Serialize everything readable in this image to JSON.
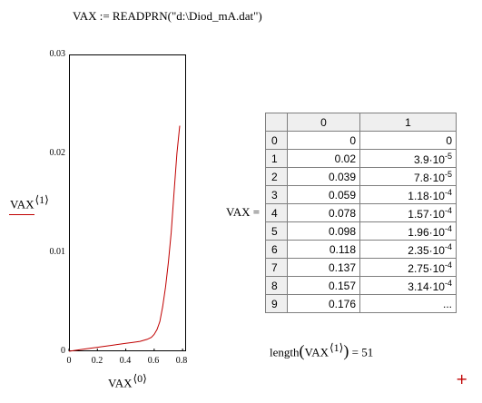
{
  "formula": "VAX := READPRN(\"d:\\Diod_mA.dat\")",
  "plot": {
    "y_ticks": [
      "0.03",
      "0.02",
      "0.01",
      "0"
    ],
    "x_ticks": [
      "0",
      "0.2",
      "0.4",
      "0.6",
      "0.8"
    ],
    "ylabel_base": "VAX",
    "ylabel_sup": "⟨1⟩",
    "xlabel_base": "VAX",
    "xlabel_sup": "⟨0⟩",
    "line_color": "#c00000"
  },
  "chart_data": {
    "type": "line",
    "x": [
      0,
      0.1,
      0.2,
      0.3,
      0.4,
      0.45,
      0.5,
      0.55,
      0.58,
      0.6,
      0.62,
      0.64,
      0.66,
      0.68,
      0.7,
      0.72,
      0.74,
      0.76,
      0.78
    ],
    "y": [
      0,
      0.0002,
      0.0004,
      0.0006,
      0.0008,
      0.0009,
      0.001,
      0.0012,
      0.0014,
      0.0017,
      0.0022,
      0.003,
      0.0045,
      0.0065,
      0.009,
      0.012,
      0.016,
      0.02,
      0.0228
    ],
    "xlim": [
      0,
      0.8
    ],
    "ylim": [
      0,
      0.03
    ],
    "xlabel": "VAX⟨0⟩",
    "ylabel": "VAX⟨1⟩"
  },
  "vax_label": "VAX =",
  "table": {
    "col_headers": [
      "0",
      "1"
    ],
    "rows": [
      {
        "idx": "0",
        "c0": "0",
        "c1_m": "0",
        "c1_e": ""
      },
      {
        "idx": "1",
        "c0": "0.02",
        "c1_m": "3.9·10",
        "c1_e": "-5"
      },
      {
        "idx": "2",
        "c0": "0.039",
        "c1_m": "7.8·10",
        "c1_e": "-5"
      },
      {
        "idx": "3",
        "c0": "0.059",
        "c1_m": "1.18·10",
        "c1_e": "-4"
      },
      {
        "idx": "4",
        "c0": "0.078",
        "c1_m": "1.57·10",
        "c1_e": "-4"
      },
      {
        "idx": "5",
        "c0": "0.098",
        "c1_m": "1.96·10",
        "c1_e": "-4"
      },
      {
        "idx": "6",
        "c0": "0.118",
        "c1_m": "2.35·10",
        "c1_e": "-4"
      },
      {
        "idx": "7",
        "c0": "0.137",
        "c1_m": "2.75·10",
        "c1_e": "-4"
      },
      {
        "idx": "8",
        "c0": "0.157",
        "c1_m": "3.14·10",
        "c1_e": "-4"
      },
      {
        "idx": "9",
        "c0": "0.176",
        "c1_m": "...",
        "c1_e": ""
      }
    ]
  },
  "length_expr": {
    "fn": "length",
    "arg": "VAX",
    "sup": "⟨1⟩",
    "result": "= 51"
  },
  "plus_marker": "+"
}
